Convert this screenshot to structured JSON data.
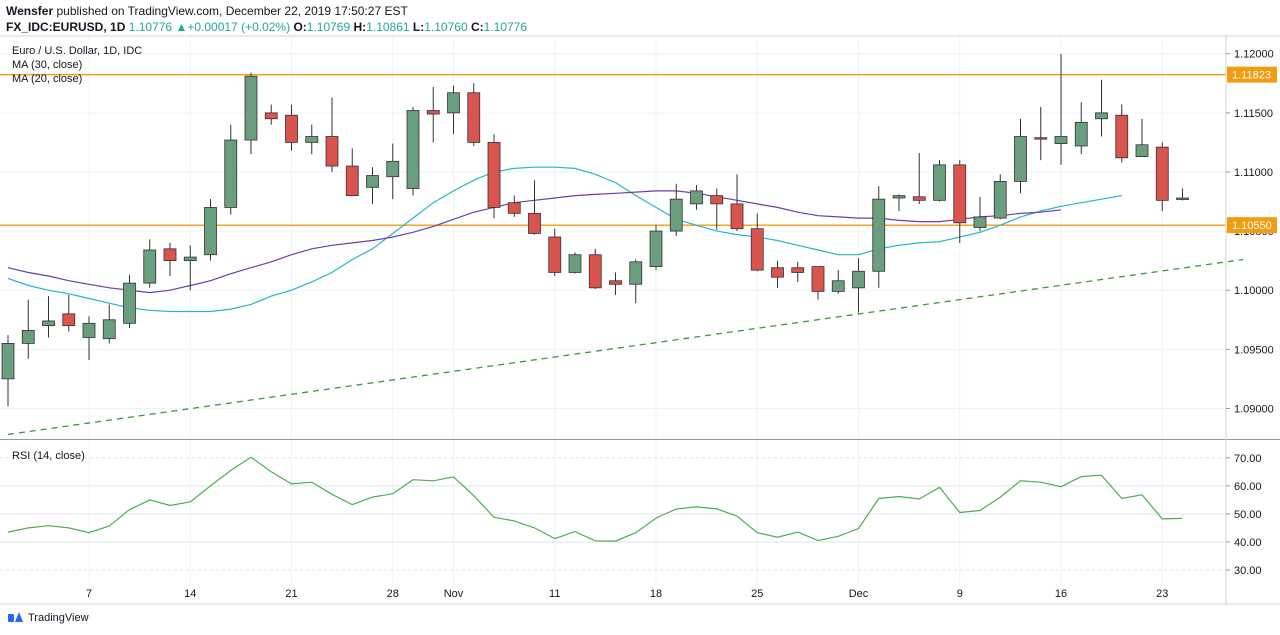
{
  "header": {
    "publisher": "Wensfer",
    "published_text": "published on TradingView.com, December 22, 2019 17:50:27 EST",
    "symbol": "FX_IDC:EURUSD,",
    "interval": "1D",
    "last": "1.10776",
    "change_icon": "triangle-up-icon",
    "change": "+0.00017 (+0.02%)",
    "o_label": "O:",
    "o_value": "1.10769",
    "h_label": "H:",
    "h_value": "1.10861",
    "l_label": "L:",
    "l_value": "1.10760",
    "c_label": "C:",
    "c_value": "1.10776"
  },
  "legend": {
    "instrument": "Euro / U.S. Dollar, 1D, IDC",
    "ma30": "MA (30, close)",
    "ma20": "MA (20, close)",
    "rsi": "RSI (14, close)"
  },
  "footer": {
    "brand": "TradingView"
  },
  "colors": {
    "up": "#6a9e7f",
    "down": "#d9534f",
    "ma30": "#26b5c9",
    "ma20": "#6c3fa8",
    "trend": "#3a9a3a",
    "level": "#f39c12",
    "rsi": "#4caf50"
  },
  "chart_data": [
    {
      "type": "candlestick",
      "price_axis": {
        "ticks": [
          "1.12000",
          "1.11500",
          "1.11000",
          "1.10500",
          "1.10000",
          "1.09500",
          "1.09000"
        ],
        "ylim": [
          1.0875,
          1.1215
        ]
      },
      "x_axis": {
        "labels": [
          "7",
          "14",
          "21",
          "28",
          "Nov",
          "11",
          "18",
          "25",
          "Dec",
          "9",
          "16",
          "23"
        ],
        "label_index": [
          4,
          9,
          14,
          19,
          22,
          27,
          32,
          37,
          42,
          47,
          52,
          57
        ]
      },
      "levels": [
        {
          "value": 1.11823,
          "label": "1.11823"
        },
        {
          "value": 1.1055,
          "label": "1.10550"
        }
      ],
      "candles": [
        [
          1.0925,
          1.0962,
          1.0902,
          1.0955
        ],
        [
          1.0955,
          1.0992,
          1.0942,
          1.0966
        ],
        [
          1.097,
          1.0995,
          1.096,
          1.0974
        ],
        [
          1.098,
          1.0996,
          1.0965,
          1.097
        ],
        [
          1.096,
          1.0978,
          1.0941,
          1.0972
        ],
        [
          1.0959,
          1.0988,
          1.0955,
          1.0975
        ],
        [
          1.0972,
          1.1013,
          1.0968,
          1.1006
        ],
        [
          1.1006,
          1.1043,
          1.1002,
          1.1034
        ],
        [
          1.1035,
          1.104,
          1.1012,
          1.1025
        ],
        [
          1.1025,
          1.1038,
          1.1,
          1.1028
        ],
        [
          1.103,
          1.1077,
          1.1025,
          1.107
        ],
        [
          1.107,
          1.114,
          1.1064,
          1.1127
        ],
        [
          1.1127,
          1.1184,
          1.1115,
          1.1181
        ],
        [
          1.115,
          1.1157,
          1.114,
          1.1145
        ],
        [
          1.1148,
          1.1157,
          1.1118,
          1.1125
        ],
        [
          1.1125,
          1.114,
          1.1115,
          1.113
        ],
        [
          1.113,
          1.1163,
          1.11,
          1.1105
        ],
        [
          1.1105,
          1.112,
          1.108,
          1.108
        ],
        [
          1.1087,
          1.1104,
          1.1073,
          1.1097
        ],
        [
          1.1096,
          1.1124,
          1.1077,
          1.1109
        ],
        [
          1.1086,
          1.1155,
          1.108,
          1.1152
        ],
        [
          1.1152,
          1.1172,
          1.1125,
          1.1149
        ],
        [
          1.115,
          1.1173,
          1.1132,
          1.1167
        ],
        [
          1.1167,
          1.1175,
          1.1122,
          1.1125
        ],
        [
          1.1125,
          1.1132,
          1.1061,
          1.107
        ],
        [
          1.1074,
          1.108,
          1.1062,
          1.1065
        ],
        [
          1.1065,
          1.1093,
          1.1047,
          1.1048
        ],
        [
          1.1045,
          1.1052,
          1.1012,
          1.1015
        ],
        [
          1.1015,
          1.1032,
          1.1014,
          1.103
        ],
        [
          1.103,
          1.1035,
          1.1001,
          1.1002
        ],
        [
          1.1008,
          1.1015,
          1.0996,
          1.1005
        ],
        [
          1.1005,
          1.1026,
          1.0989,
          1.1024
        ],
        [
          1.102,
          1.1055,
          1.1017,
          1.105
        ],
        [
          1.105,
          1.109,
          1.1046,
          1.1077
        ],
        [
          1.1073,
          1.1089,
          1.1068,
          1.1084
        ],
        [
          1.108,
          1.1086,
          1.1051,
          1.1073
        ],
        [
          1.1073,
          1.1098,
          1.105,
          1.1052
        ],
        [
          1.1052,
          1.1065,
          1.1016,
          1.1017
        ],
        [
          1.1019,
          1.1025,
          1.1002,
          1.1011
        ],
        [
          1.1019,
          1.1024,
          1.1007,
          1.1015
        ],
        [
          1.102,
          1.102,
          1.0992,
          1.0999
        ],
        [
          1.0999,
          1.1017,
          1.0997,
          1.1008
        ],
        [
          1.1002,
          1.1027,
          1.0981,
          1.1016
        ],
        [
          1.1016,
          1.1088,
          1.1002,
          1.1077
        ],
        [
          1.1078,
          1.1081,
          1.1067,
          1.108
        ],
        [
          1.1079,
          1.1116,
          1.1073,
          1.1076
        ],
        [
          1.1076,
          1.111,
          1.1075,
          1.1106
        ],
        [
          1.1106,
          1.111,
          1.104,
          1.1057
        ],
        [
          1.1053,
          1.1079,
          1.105,
          1.1062
        ],
        [
          1.1061,
          1.1098,
          1.106,
          1.1092
        ],
        [
          1.1092,
          1.1145,
          1.1082,
          1.113
        ],
        [
          1.1129,
          1.1155,
          1.111,
          1.1128
        ],
        [
          1.1124,
          1.12,
          1.1106,
          1.113
        ],
        [
          1.1122,
          1.1159,
          1.1115,
          1.1142
        ],
        [
          1.1145,
          1.1178,
          1.113,
          1.115
        ],
        [
          1.1148,
          1.1157,
          1.1108,
          1.1112
        ],
        [
          1.1113,
          1.1145,
          1.1113,
          1.1123
        ],
        [
          1.1121,
          1.1125,
          1.1067,
          1.1076
        ],
        [
          1.1077,
          1.1086,
          1.1076,
          1.1078
        ]
      ],
      "ma30": [
        1.101,
        1.1004,
        1.1,
        1.0997,
        1.0993,
        1.0989,
        1.0985,
        1.0983,
        1.0982,
        1.0982,
        1.0982,
        1.0984,
        1.0988,
        1.0995,
        1.1,
        1.1007,
        1.1015,
        1.1026,
        1.1035,
        1.1048,
        1.1061,
        1.1074,
        1.1084,
        1.1093,
        1.11,
        1.1103,
        1.1104,
        1.1104,
        1.1103,
        1.1098,
        1.1091,
        1.108,
        1.107,
        1.106,
        1.1055,
        1.105,
        1.1047,
        1.1045,
        1.1042,
        1.1038,
        1.1034,
        1.103,
        1.103,
        1.1035,
        1.1038,
        1.104,
        1.1041,
        1.1045,
        1.1049,
        1.1055,
        1.1062,
        1.1067,
        1.1071,
        1.1074,
        1.1077,
        1.108
      ],
      "ma30_start": 0,
      "ma20": [
        1.1019,
        1.1015,
        1.1012,
        1.1008,
        1.1005,
        1.1002,
        1.1,
        1.0998,
        1.1,
        1.1004,
        1.1008,
        1.1014,
        1.1019,
        1.1024,
        1.103,
        1.1035,
        1.1038,
        1.104,
        1.1042,
        1.1045,
        1.1049,
        1.1054,
        1.106,
        1.1066,
        1.107,
        1.1074,
        1.1076,
        1.1078,
        1.108,
        1.1081,
        1.1082,
        1.1083,
        1.1084,
        1.1084,
        1.1082,
        1.1079,
        1.1076,
        1.1073,
        1.107,
        1.1066,
        1.1063,
        1.1062,
        1.1061,
        1.1061,
        1.1059,
        1.1058,
        1.1058,
        1.106,
        1.1062,
        1.1063,
        1.1065,
        1.1066,
        1.1068
      ],
      "ma20_start": 0,
      "trendline": {
        "start": [
          0,
          1.0878
        ],
        "end": [
          61,
          1.1026
        ]
      }
    },
    {
      "type": "line",
      "title": "RSI (14, close)",
      "y_ticks": [
        "70.00",
        "60.00",
        "50.00",
        "40.00",
        "30.00"
      ],
      "ylim": [
        25,
        76
      ],
      "values": [
        43.5,
        45.0,
        45.8,
        45.0,
        43.3,
        45.7,
        51.5,
        55.0,
        53.0,
        54.3,
        60.0,
        65.5,
        70.2,
        65.0,
        60.7,
        61.3,
        57.0,
        53.3,
        56.0,
        57.2,
        62.2,
        61.8,
        63.2,
        56.5,
        48.8,
        47.5,
        45.0,
        41.2,
        43.7,
        40.4,
        40.3,
        43.3,
        48.5,
        51.8,
        52.5,
        51.8,
        49.2,
        43.3,
        41.7,
        43.5,
        40.5,
        42.0,
        44.8,
        55.5,
        56.2,
        55.3,
        59.5,
        50.5,
        51.2,
        56.0,
        61.8,
        61.3,
        59.7,
        63.3,
        63.8,
        55.5,
        56.8,
        48.2,
        48.4
      ]
    }
  ]
}
